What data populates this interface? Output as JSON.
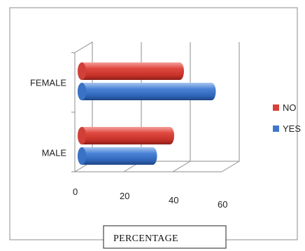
{
  "chart_data": {
    "type": "bar",
    "orientation": "horizontal",
    "style": "3d-cylinder",
    "categories": [
      "MALE",
      "FEMALE"
    ],
    "series": [
      {
        "name": "NO",
        "color": "#d9403a",
        "values": [
          36,
          40
        ]
      },
      {
        "name": "YES",
        "color": "#3f77cc",
        "values": [
          29,
          53
        ]
      }
    ],
    "xticks": [
      0,
      20,
      40,
      60
    ],
    "xlim": [
      0,
      60
    ],
    "xlabel": "PERCENTAGE",
    "ylabel": "",
    "title": "",
    "grid": true,
    "legend": "right"
  }
}
